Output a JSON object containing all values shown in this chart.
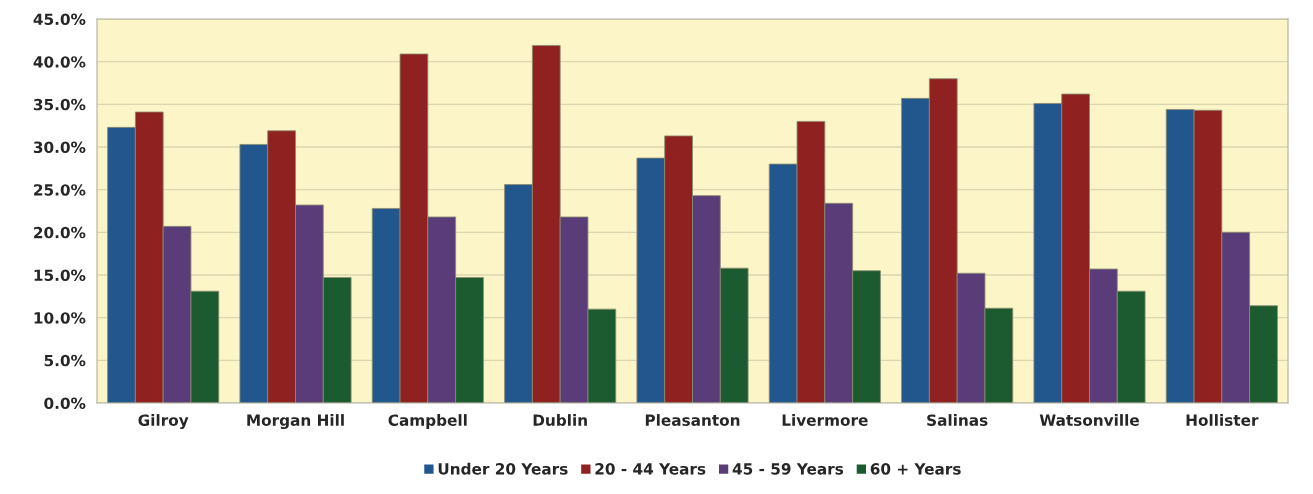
{
  "chart_data": {
    "type": "bar",
    "categories": [
      "Gilroy",
      "Morgan Hill",
      "Campbell",
      "Dublin",
      "Pleasanton",
      "Livermore",
      "Salinas",
      "Watsonville",
      "Hollister"
    ],
    "series": [
      {
        "name": "Under 20 Years",
        "color": "#22578e",
        "values": [
          32.3,
          30.3,
          22.8,
          25.6,
          28.7,
          28.0,
          35.7,
          35.1,
          34.4
        ]
      },
      {
        "name": "20 - 44 Years",
        "color": "#8f2220",
        "values": [
          34.1,
          31.9,
          40.9,
          41.9,
          31.3,
          33.0,
          38.0,
          36.2,
          34.3
        ]
      },
      {
        "name": "45 - 59 Years",
        "color": "#5a3d78",
        "values": [
          20.7,
          23.2,
          21.8,
          21.8,
          24.3,
          23.4,
          15.2,
          15.7,
          20.0
        ]
      },
      {
        "name": "60 + Years",
        "color": "#1b5b2f",
        "values": [
          13.1,
          14.7,
          14.7,
          11.0,
          15.8,
          15.5,
          11.1,
          13.1,
          11.4
        ]
      }
    ],
    "ylim": [
      0,
      45
    ],
    "yticks": [
      {
        "value": 0,
        "label": "0.0%"
      },
      {
        "value": 5,
        "label": "5.0%"
      },
      {
        "value": 10,
        "label": "10.0%"
      },
      {
        "value": 15,
        "label": "15.0%"
      },
      {
        "value": 20,
        "label": "20.0%"
      },
      {
        "value": 25,
        "label": "25.0%"
      },
      {
        "value": 30,
        "label": "30.0%"
      },
      {
        "value": 35,
        "label": "35.0%"
      },
      {
        "value": 40,
        "label": "40.0%"
      },
      {
        "value": 45,
        "label": "45.0%"
      }
    ],
    "grid": "y",
    "legend": "bottom"
  }
}
